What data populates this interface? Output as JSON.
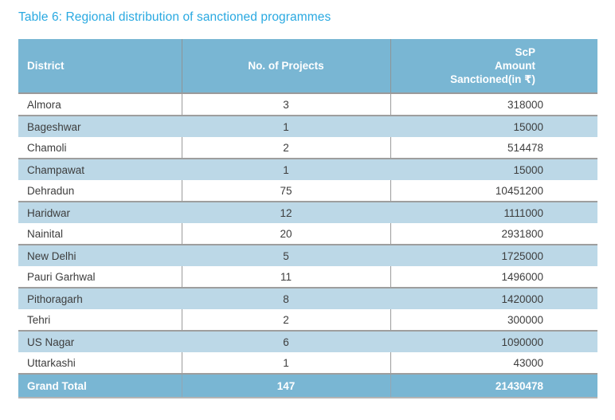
{
  "title": "Table 6: Regional distribution of sanctioned programmes",
  "table": {
    "header": {
      "district": "District",
      "projects": "No. of Projects",
      "amount_lines": [
        "ScP",
        "Amount",
        "Sanctioned(in ₹)"
      ]
    },
    "rows": [
      {
        "district": "Almora",
        "projects": "3",
        "amount": "318000"
      },
      {
        "district": "Bageshwar",
        "projects": "1",
        "amount": "15000"
      },
      {
        "district": "Chamoli",
        "projects": "2",
        "amount": "514478"
      },
      {
        "district": "Champawat",
        "projects": "1",
        "amount": "15000"
      },
      {
        "district": "Dehradun",
        "projects": "75",
        "amount": "10451200"
      },
      {
        "district": "Haridwar",
        "projects": "12",
        "amount": "1111000"
      },
      {
        "district": "Nainital",
        "projects": "20",
        "amount": "2931800"
      },
      {
        "district": "New Delhi",
        "projects": "5",
        "amount": "1725000"
      },
      {
        "district": "Pauri Garhwal",
        "projects": "11",
        "amount": "1496000"
      },
      {
        "district": "Pithoragarh",
        "projects": "8",
        "amount": "1420000"
      },
      {
        "district": "Tehri",
        "projects": "2",
        "amount": "300000"
      },
      {
        "district": "US Nagar",
        "projects": "6",
        "amount": "1090000"
      },
      {
        "district": "Uttarkashi",
        "projects": "1",
        "amount": "43000"
      }
    ],
    "grand_total": {
      "label": "Grand Total",
      "projects": "147",
      "amount": "21430478"
    }
  },
  "colors": {
    "title_text": "#29a9e1",
    "header_bg": "#79b6d3",
    "alt_row_bg": "#bcd8e7",
    "row_border": "#9e9e9e",
    "divider": "#9b9b9b",
    "body_text": "#3d3d3d",
    "header_text": "#ffffff"
  }
}
